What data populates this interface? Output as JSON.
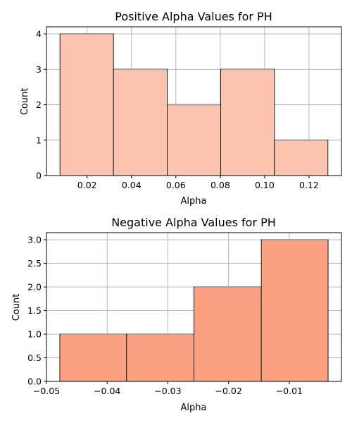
{
  "chart_data": [
    {
      "type": "bar",
      "title": "Positive Alpha Values for PH",
      "xlabel": "Alpha",
      "ylabel": "Count",
      "bar_color": "#fcc4ae",
      "bins": [
        {
          "x0": 0.0078,
          "x1": 0.0319,
          "value": 4
        },
        {
          "x0": 0.0319,
          "x1": 0.0561,
          "value": 3
        },
        {
          "x0": 0.0561,
          "x1": 0.0802,
          "value": 2
        },
        {
          "x0": 0.0802,
          "x1": 0.1044,
          "value": 3
        },
        {
          "x0": 0.1044,
          "x1": 0.1285,
          "value": 1
        }
      ],
      "xlim": [
        0.0017,
        0.1346
      ],
      "ylim": [
        0,
        4.2
      ],
      "xticks": [
        0.02,
        0.04,
        0.06,
        0.08,
        0.1,
        0.12
      ],
      "xtick_labels": [
        "0.02",
        "0.04",
        "0.06",
        "0.08",
        "0.10",
        "0.12"
      ],
      "yticks": [
        0,
        1,
        2,
        3,
        4
      ],
      "ytick_labels": [
        "0",
        "1",
        "2",
        "3",
        "4"
      ],
      "grid": true
    },
    {
      "type": "bar",
      "title": "Negative Alpha Values for PH",
      "xlabel": "Alpha",
      "ylabel": "Count",
      "bar_color": "#fca082",
      "bins": [
        {
          "x0": -0.0478,
          "x1": -0.0368,
          "value": 1
        },
        {
          "x0": -0.0368,
          "x1": -0.0257,
          "value": 1
        },
        {
          "x0": -0.0257,
          "x1": -0.0146,
          "value": 2
        },
        {
          "x0": -0.0146,
          "x1": -0.0036,
          "value": 3
        }
      ],
      "xlim": [
        -0.05,
        -0.0014
      ],
      "ylim": [
        0,
        3.15
      ],
      "xticks": [
        -0.05,
        -0.04,
        -0.03,
        -0.02,
        -0.01
      ],
      "xtick_labels": [
        "−0.05",
        "−0.04",
        "−0.03",
        "−0.02",
        "−0.01"
      ],
      "yticks": [
        0,
        0.5,
        1.0,
        1.5,
        2.0,
        2.5,
        3.0
      ],
      "ytick_labels": [
        "0.0",
        "0.5",
        "1.0",
        "1.5",
        "2.0",
        "2.5",
        "3.0"
      ],
      "grid": true
    }
  ]
}
